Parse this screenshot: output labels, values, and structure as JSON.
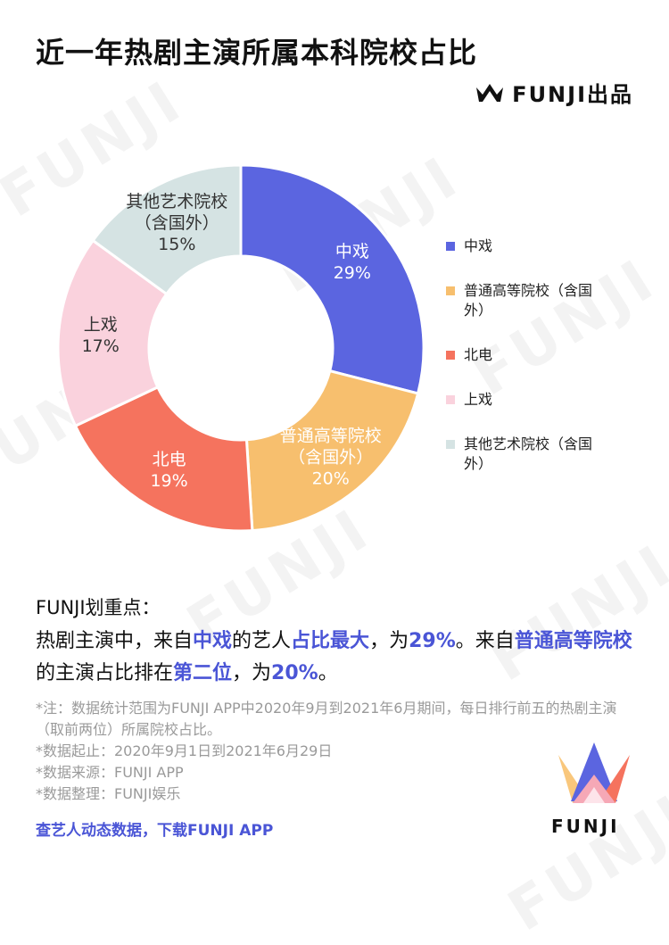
{
  "title": "近一年热剧主演所属本科院校占比",
  "brand": {
    "text": "FUNJI出品",
    "icon": "crown-icon"
  },
  "watermark": "FUNJI",
  "chart_data": {
    "type": "pie",
    "title": "近一年热剧主演所属本科院校占比",
    "donut": true,
    "legend_position": "right",
    "slices": [
      {
        "label": "中戏",
        "label_lines": [
          "中戏"
        ],
        "value": 29,
        "value_text": "29%",
        "color": "#5b65e0",
        "label_color": "#ffffff"
      },
      {
        "label": "普通高等院校（含国外）",
        "label_lines": [
          "普通高等院校",
          "（含国外）"
        ],
        "value": 20,
        "value_text": "20%",
        "color": "#f7bf6e",
        "label_color": "#ffffff"
      },
      {
        "label": "北电",
        "label_lines": [
          "北电"
        ],
        "value": 19,
        "value_text": "19%",
        "color": "#f5735e",
        "label_color": "#ffffff"
      },
      {
        "label": "上戏",
        "label_lines": [
          "上戏"
        ],
        "value": 17,
        "value_text": "17%",
        "color": "#fad2dd",
        "label_color": "#333333"
      },
      {
        "label": "其他艺术院校（含国外）",
        "label_lines": [
          "其他艺术院校",
          "（含国外）"
        ],
        "value": 15,
        "value_text": "15%",
        "color": "#d5e3e3",
        "label_color": "#333333"
      }
    ],
    "legend": [
      {
        "lines": [
          "中戏"
        ],
        "color": "#5b65e0"
      },
      {
        "lines": [
          "普通高等院校（含国",
          "外）"
        ],
        "color": "#f7bf6e"
      },
      {
        "lines": [
          "北电"
        ],
        "color": "#f5735e"
      },
      {
        "lines": [
          "上戏"
        ],
        "color": "#fad2dd"
      },
      {
        "lines": [
          "其他艺术院校（含国",
          "外）"
        ],
        "color": "#d5e3e3"
      }
    ]
  },
  "highlight": {
    "heading": "FUNJI划重点：",
    "parts": [
      {
        "text": "热剧主演中，来自",
        "em": false
      },
      {
        "text": "中戏",
        "em": true
      },
      {
        "text": "的艺人",
        "em": false
      },
      {
        "text": "占比最大",
        "em": true
      },
      {
        "text": "，为",
        "em": false
      },
      {
        "text": "29%",
        "em": true
      },
      {
        "text": "。来自",
        "em": false
      },
      {
        "text": "普通高等院校",
        "em": true
      },
      {
        "text": "的主演占比排在",
        "em": false
      },
      {
        "text": "第二位",
        "em": true
      },
      {
        "text": "，为",
        "em": false
      },
      {
        "text": "20%",
        "em": true
      },
      {
        "text": "。",
        "em": false
      }
    ],
    "accent_color": "#4a55d6"
  },
  "notes": [
    "*注：数据统计范围为FUNJI APP中2020年9月到2021年6月期间，每日排行前五的热剧主演（取前两位）所属院校占比。",
    "*数据起止：2020年9月1日到2021年6月29日",
    "*数据来源：FUNJI APP",
    "*数据整理：FUNJI娱乐"
  ],
  "cta": "查艺人动态数据，下载FUNJI APP",
  "logo_big": {
    "text": "FUNJI",
    "icon": "funji-crown-logo-icon"
  }
}
